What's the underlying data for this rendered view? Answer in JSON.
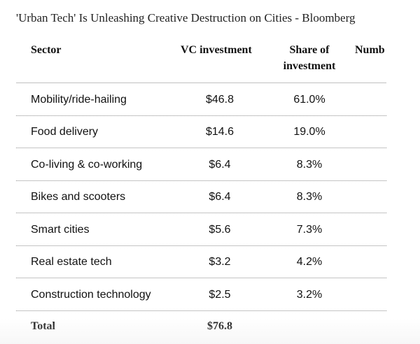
{
  "page": {
    "title": "'Urban Tech' Is Unleashing Creative Destruction on Cities - Bloomberg"
  },
  "table": {
    "headers": {
      "sector": "Sector",
      "vc_investment": "VC investment",
      "share_line1": "Share of",
      "share_line2": "investment",
      "number": "Numb"
    },
    "rows": [
      {
        "sector": "Mobility/ride-hailing",
        "vc": "$46.8",
        "share": "61.0%"
      },
      {
        "sector": "Food delivery",
        "vc": "$14.6",
        "share": "19.0%"
      },
      {
        "sector": "Co-living & co-working",
        "vc": "$6.4",
        "share": "8.3%"
      },
      {
        "sector": "Bikes and scooters",
        "vc": "$6.4",
        "share": "8.3%"
      },
      {
        "sector": "Smart cities",
        "vc": "$5.6",
        "share": "7.3%"
      },
      {
        "sector": "Real estate tech",
        "vc": "$3.2",
        "share": "4.2%"
      },
      {
        "sector": "Construction technology",
        "vc": "$2.5",
        "share": "3.2%"
      }
    ],
    "total": {
      "label": "Total",
      "vc": "$76.8"
    }
  }
}
